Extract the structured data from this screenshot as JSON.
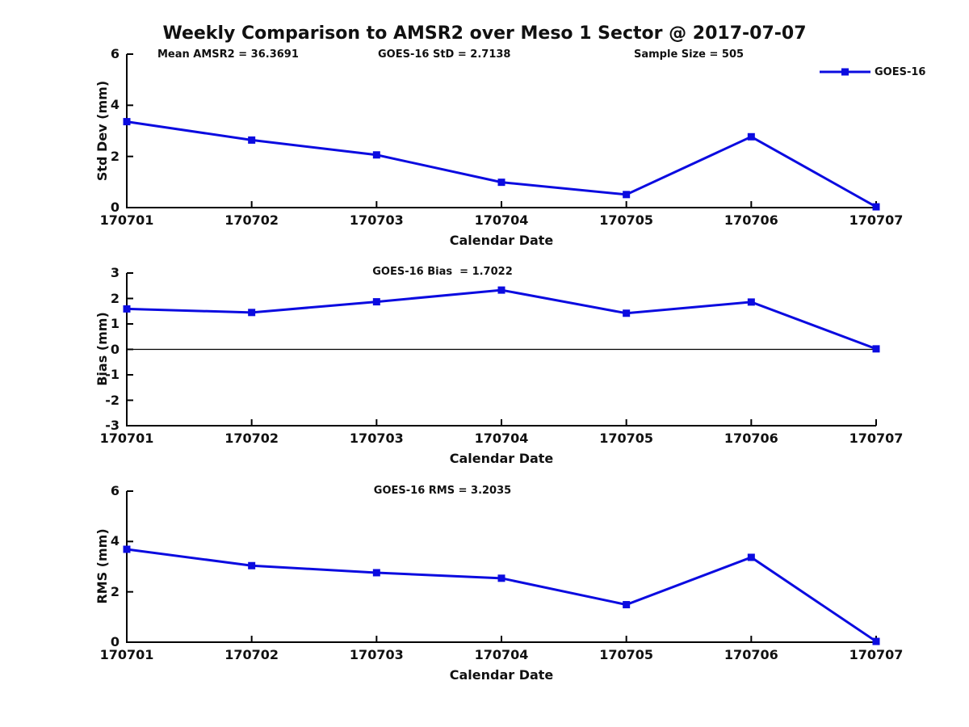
{
  "colors": {
    "line": "#0b0be0",
    "axis": "#000000",
    "text": "#111111",
    "background": "#ffffff"
  },
  "chart_data": [
    {
      "type": "line",
      "title": "Weekly Comparison to AMSR2 over Meso 1 Sector @ 2017-07-07",
      "annotations": [
        "Mean AMSR2 = 36.3691",
        "GOES-16 StD = 2.7138",
        "Sample Size = 505"
      ],
      "categories": [
        "170701",
        "170702",
        "170703",
        "170704",
        "170705",
        "170706",
        "170707"
      ],
      "series": [
        {
          "name": "GOES-16",
          "values": [
            3.36,
            2.64,
            2.06,
            0.99,
            0.51,
            2.77,
            0.03
          ]
        }
      ],
      "xlabel": "Calendar Date",
      "ylabel": "Std Dev (mm)",
      "ylim": [
        0,
        6
      ],
      "yticks": [
        0,
        2,
        4,
        6
      ],
      "grid": false,
      "marker": "square",
      "legend": {
        "label": "GOES-16",
        "position": "top-right"
      }
    },
    {
      "type": "line",
      "title": "GOES-16 Bias  = 1.7022",
      "categories": [
        "170701",
        "170702",
        "170703",
        "170704",
        "170705",
        "170706",
        "170707"
      ],
      "series": [
        {
          "name": "GOES-16",
          "values": [
            1.59,
            1.45,
            1.87,
            2.33,
            1.42,
            1.86,
            0.02
          ]
        }
      ],
      "xlabel": "Calendar Date",
      "ylabel": "Bias (mm)",
      "ylim": [
        -3,
        3
      ],
      "yticks": [
        -3,
        -2,
        -1,
        0,
        1,
        2,
        3
      ],
      "zero_line": true,
      "grid": false,
      "marker": "square"
    },
    {
      "type": "line",
      "title": "GOES-16 RMS = 3.2035",
      "categories": [
        "170701",
        "170702",
        "170703",
        "170704",
        "170705",
        "170706",
        "170707"
      ],
      "series": [
        {
          "name": "GOES-16",
          "values": [
            3.69,
            3.04,
            2.76,
            2.54,
            1.49,
            3.37,
            0.03
          ]
        }
      ],
      "xlabel": "Calendar Date",
      "ylabel": "RMS (mm)",
      "ylim": [
        0,
        6
      ],
      "yticks": [
        0,
        2,
        4,
        6
      ],
      "grid": false,
      "marker": "square"
    }
  ]
}
